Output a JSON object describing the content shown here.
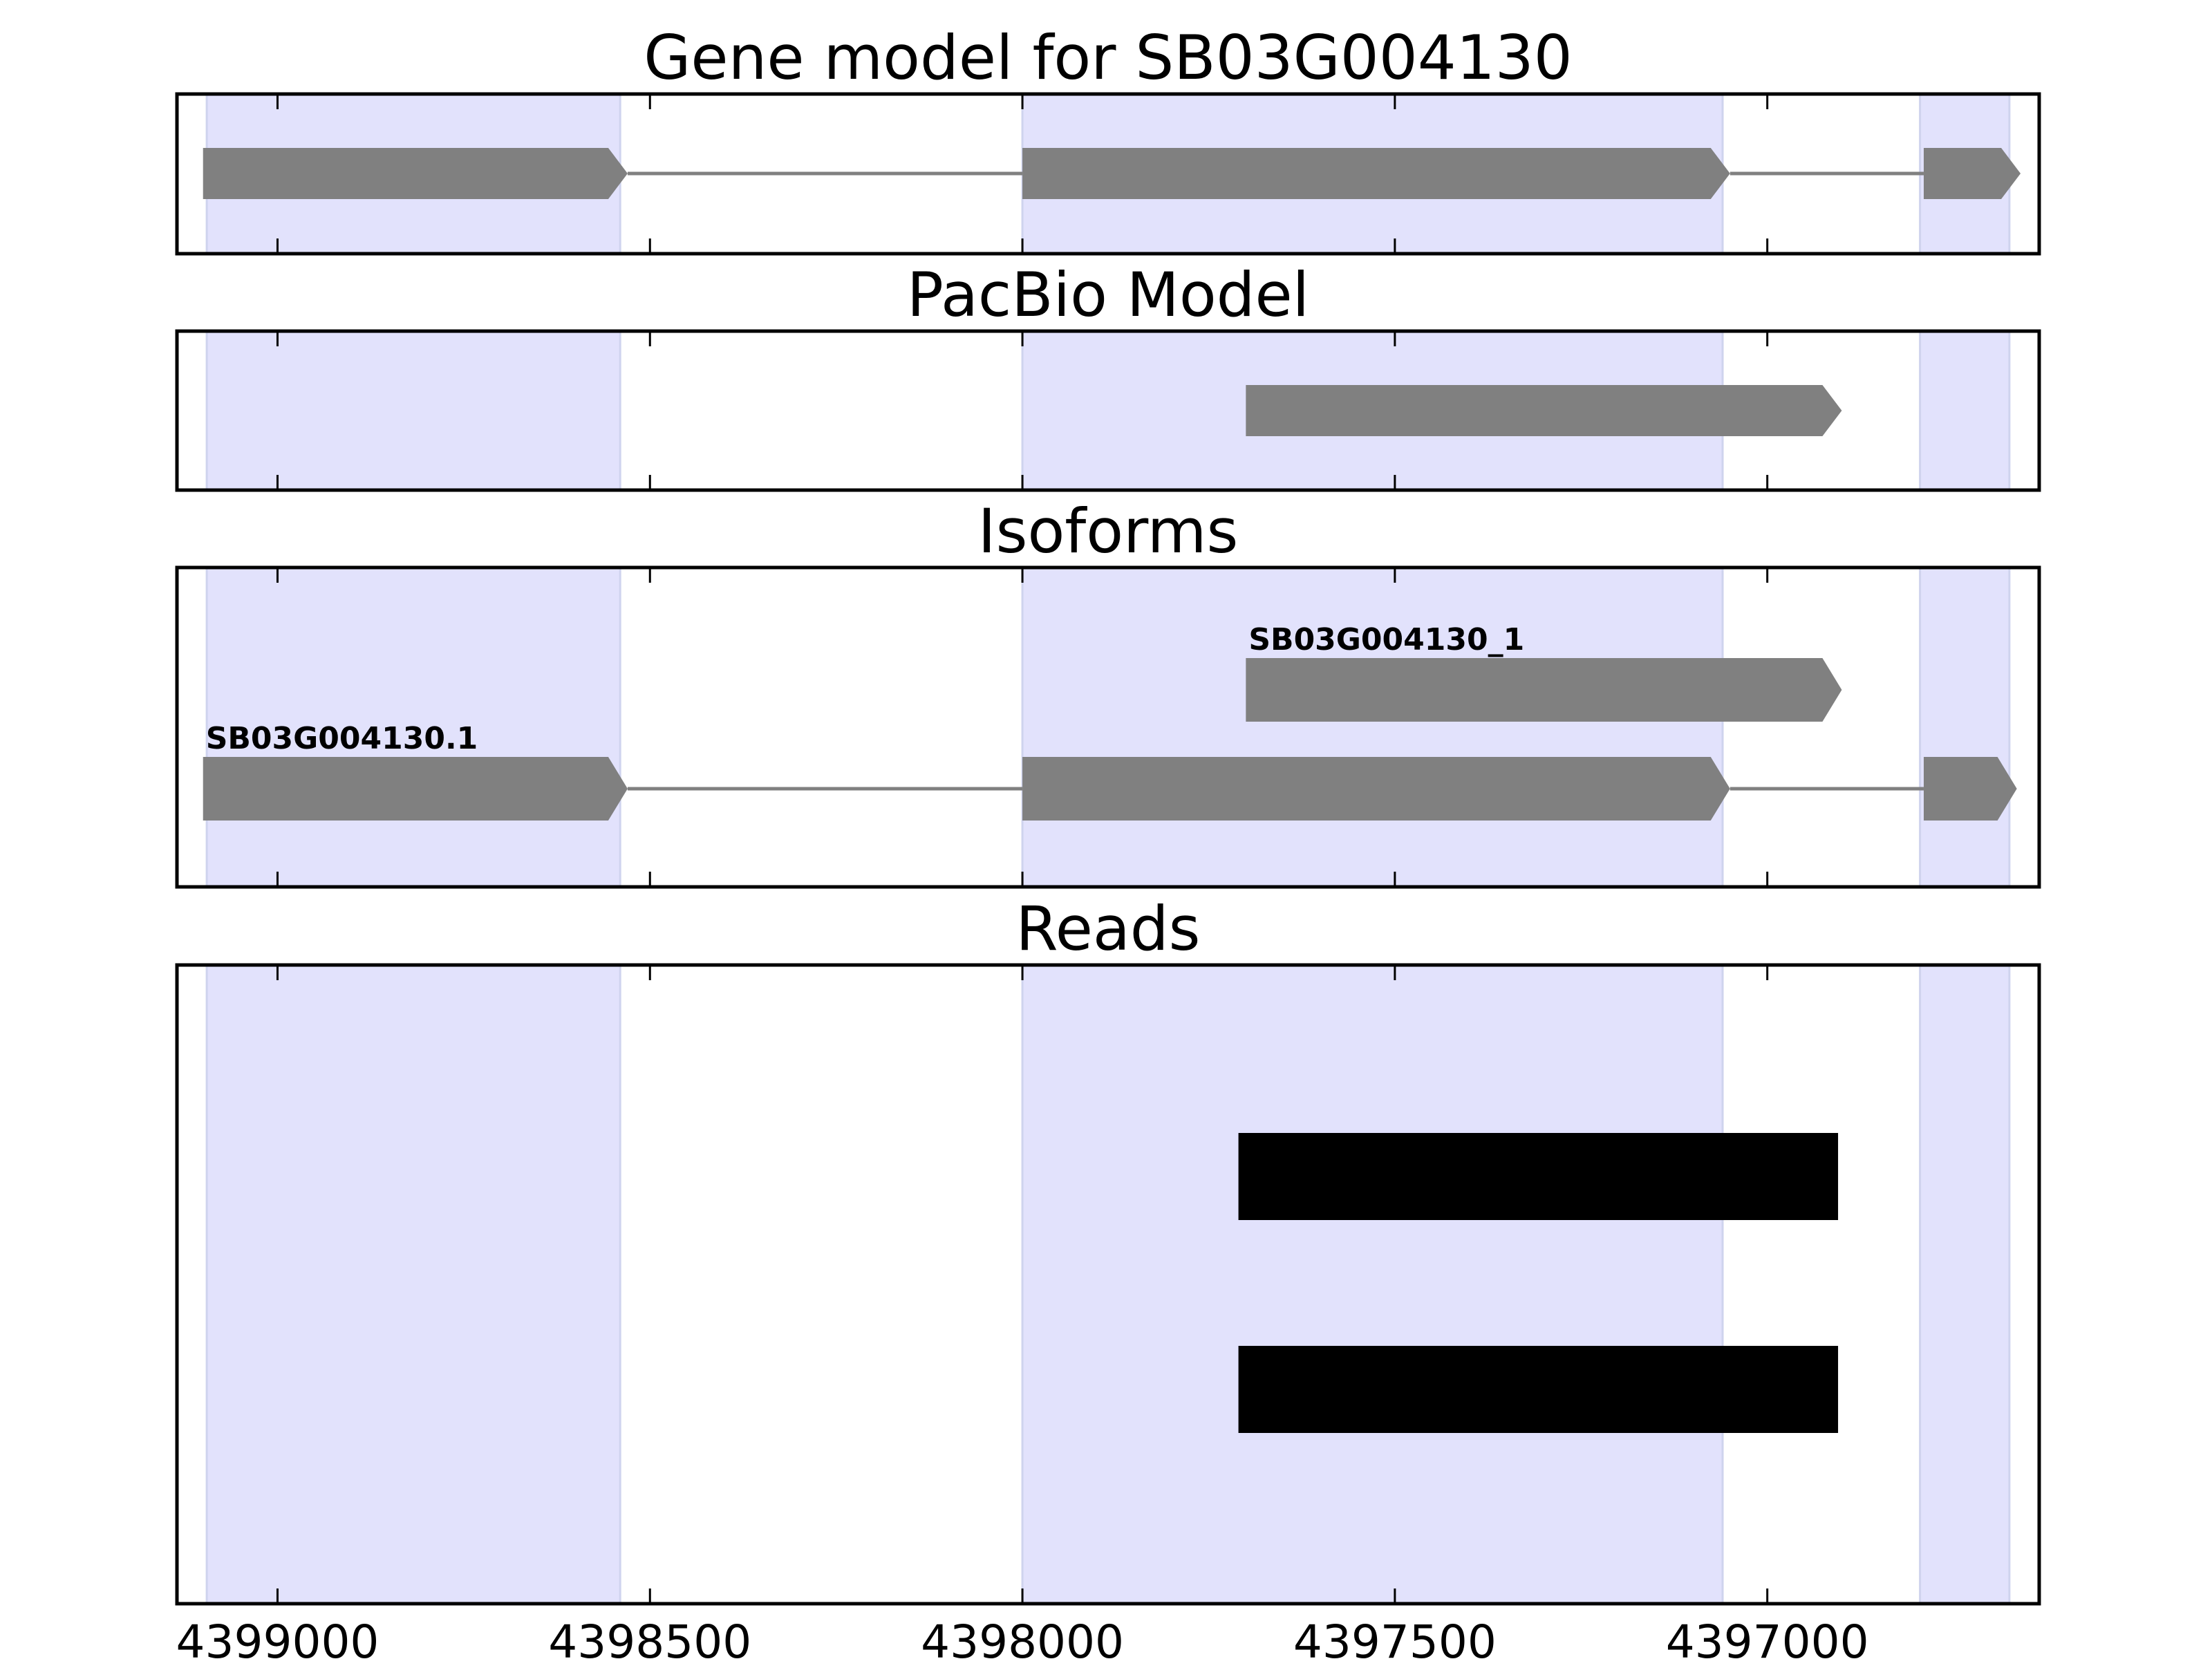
{
  "chart_data": {
    "type": "gene-track",
    "xlim": [
      4399135,
      4396635
    ],
    "x_ticks": [
      4399000,
      4398500,
      4398000,
      4397500,
      4397000
    ],
    "x_tick_labels": [
      "4399000",
      "4398500",
      "4398000",
      "4397500",
      "4397000"
    ],
    "colors": {
      "exon_highlight": "#e2e2fc",
      "feature": "#808080",
      "read": "#000000",
      "axes": "#000000"
    },
    "exon_regions": [
      {
        "start": 4399095,
        "end": 4398540
      },
      {
        "start": 4398000,
        "end": 4397060
      },
      {
        "start": 4396795,
        "end": 4396675
      }
    ],
    "panels": [
      {
        "key": "gene_model",
        "title": "Gene model for SB03G004130",
        "rows": [
          {
            "label": "",
            "exons": [
              [
                4399100,
                4398530
              ],
              [
                4398000,
                4397050
              ],
              [
                4396790,
                4396660
              ]
            ],
            "strand": "-"
          }
        ]
      },
      {
        "key": "pacbio",
        "title": "PacBio Model",
        "rows": [
          {
            "label": "",
            "exons": [
              [
                4397700,
                4396900
              ]
            ],
            "strand": "-"
          }
        ]
      },
      {
        "key": "isoforms",
        "title": "Isoforms",
        "rows": [
          {
            "label": "SB03G004130_1",
            "exons": [
              [
                4397700,
                4396900
              ]
            ],
            "strand": "-"
          },
          {
            "label": "SB03G004130.1",
            "exons": [
              [
                4399100,
                4398530
              ],
              [
                4398000,
                4397050
              ],
              [
                4396790,
                4396665
              ]
            ],
            "strand": "-"
          }
        ]
      },
      {
        "key": "reads",
        "title": "Reads",
        "reads": [
          {
            "start": 4397710,
            "end": 4396905
          },
          {
            "start": 4397710,
            "end": 4396905
          }
        ]
      }
    ]
  }
}
